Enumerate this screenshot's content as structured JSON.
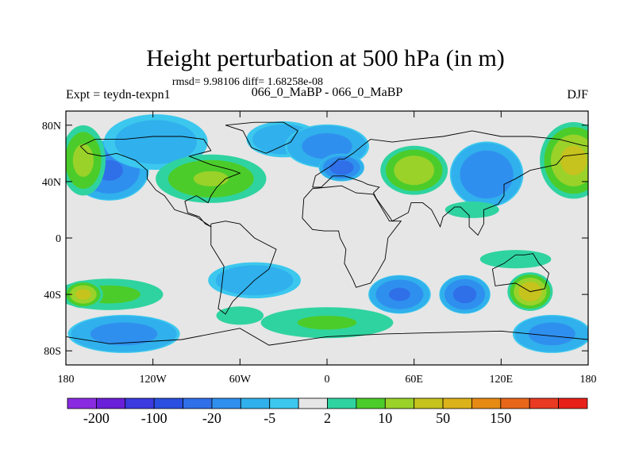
{
  "chart_data": {
    "type": "heatmap",
    "title": "Height perturbation at 500 hPa (in m)",
    "subtitle": "rmsd= 9.98106 diff= 1.68258e-08",
    "left_label": "Expt = teydn-texpn1",
    "center_label": "066_0_MaBP - 066_0_MaBP",
    "right_label": "DJF",
    "x_ticks": [
      {
        "value": -180,
        "label": "180"
      },
      {
        "value": -120,
        "label": "120W"
      },
      {
        "value": -60,
        "label": "60W"
      },
      {
        "value": 0,
        "label": "0"
      },
      {
        "value": 60,
        "label": "60E"
      },
      {
        "value": 120,
        "label": "120E"
      },
      {
        "value": 180,
        "label": "180"
      }
    ],
    "y_ticks": [
      {
        "value": 80,
        "label": "80N"
      },
      {
        "value": 40,
        "label": "40N"
      },
      {
        "value": 0,
        "label": "0"
      },
      {
        "value": -40,
        "label": "40S"
      },
      {
        "value": -80,
        "label": "80S"
      }
    ],
    "xlim": [
      -180,
      180
    ],
    "ylim": [
      -90,
      90
    ],
    "colorbar": {
      "colors": [
        "#8a2be2",
        "#6a1fd8",
        "#3b3be0",
        "#2a4fe0",
        "#2f6fe8",
        "#2f8fee",
        "#30b0ec",
        "#3cc8ee",
        "#e6e6e6",
        "#2fd3a0",
        "#4ccc2a",
        "#9ad22a",
        "#c6c21e",
        "#dcb21a",
        "#e68a14",
        "#e8661a",
        "#ea3a22",
        "#e8201a"
      ],
      "labels": [
        {
          "boundary": 1,
          "text": "-200"
        },
        {
          "boundary": 3,
          "text": "-100"
        },
        {
          "boundary": 5,
          "text": "-20"
        },
        {
          "boundary": 7,
          "text": "-5"
        },
        {
          "boundary": 9,
          "text": "2"
        },
        {
          "boundary": 11,
          "text": "10"
        },
        {
          "boundary": 13,
          "text": "50"
        },
        {
          "boundary": 15,
          "text": "150"
        }
      ]
    },
    "blobs": [
      {
        "lon": -150,
        "lat": 48,
        "rlon": 28,
        "rlat": 22,
        "value": -45
      },
      {
        "lon": -118,
        "lat": 68,
        "rlon": 40,
        "rlat": 22,
        "value": -10
      },
      {
        "lon": -168,
        "lat": 55,
        "rlon": 16,
        "rlat": 26,
        "value": 25
      },
      {
        "lon": -80,
        "lat": 42,
        "rlon": 40,
        "rlat": 18,
        "value": 22
      },
      {
        "lon": -30,
        "lat": 70,
        "rlon": 28,
        "rlat": 14,
        "value": -12
      },
      {
        "lon": 0,
        "lat": 65,
        "rlon": 30,
        "rlat": 16,
        "value": -30
      },
      {
        "lon": 10,
        "lat": 50,
        "rlon": 16,
        "rlat": 10,
        "value": -55
      },
      {
        "lon": 60,
        "lat": 48,
        "rlon": 24,
        "rlat": 18,
        "value": 30
      },
      {
        "lon": 110,
        "lat": 45,
        "rlon": 26,
        "rlat": 24,
        "value": -40
      },
      {
        "lon": 170,
        "lat": 55,
        "rlon": 24,
        "rlat": 28,
        "value": 35
      },
      {
        "lon": 100,
        "lat": 20,
        "rlon": 22,
        "rlat": 7,
        "value": 7
      },
      {
        "lon": -150,
        "lat": -40,
        "rlon": 40,
        "rlat": 12,
        "value": 14
      },
      {
        "lon": -168,
        "lat": -40,
        "rlon": 14,
        "rlat": 10,
        "value": 35
      },
      {
        "lon": -140,
        "lat": -68,
        "rlon": 40,
        "rlat": 14,
        "value": -30
      },
      {
        "lon": -50,
        "lat": -30,
        "rlon": 35,
        "rlat": 14,
        "value": -12
      },
      {
        "lon": 50,
        "lat": -40,
        "rlon": 22,
        "rlat": 14,
        "value": -45
      },
      {
        "lon": 0,
        "lat": -60,
        "rlon": 50,
        "rlat": 12,
        "value": 12
      },
      {
        "lon": -60,
        "lat": -55,
        "rlon": 20,
        "rlat": 8,
        "value": 6
      },
      {
        "lon": 95,
        "lat": -40,
        "rlon": 18,
        "rlat": 14,
        "value": -50
      },
      {
        "lon": 140,
        "lat": -38,
        "rlon": 16,
        "rlat": 14,
        "value": 40
      },
      {
        "lon": 155,
        "lat": -68,
        "rlon": 28,
        "rlat": 14,
        "value": -30
      },
      {
        "lon": 130,
        "lat": -15,
        "rlon": 30,
        "rlat": 8,
        "value": 6
      }
    ],
    "coastlines": [
      [
        [
          -170,
          65
        ],
        [
          -160,
          70
        ],
        [
          -140,
          70
        ],
        [
          -120,
          72
        ],
        [
          -100,
          72
        ],
        [
          -85,
          70
        ],
        [
          -80,
          62
        ],
        [
          -95,
          58
        ],
        [
          -80,
          52
        ],
        [
          -65,
          48
        ],
        [
          -60,
          46
        ],
        [
          -70,
          42
        ],
        [
          -76,
          36
        ],
        [
          -80,
          30
        ],
        [
          -82,
          25
        ],
        [
          -90,
          30
        ],
        [
          -98,
          26
        ],
        [
          -96,
          18
        ],
        [
          -88,
          15
        ],
        [
          -84,
          10
        ],
        [
          -80,
          8
        ],
        [
          -90,
          15
        ],
        [
          -105,
          20
        ],
        [
          -112,
          30
        ],
        [
          -118,
          34
        ],
        [
          -124,
          42
        ],
        [
          -124,
          48
        ],
        [
          -132,
          55
        ],
        [
          -145,
          60
        ],
        [
          -155,
          58
        ],
        [
          -165,
          60
        ],
        [
          -170,
          65
        ]
      ],
      [
        [
          -50,
          82
        ],
        [
          -30,
          82
        ],
        [
          -20,
          76
        ],
        [
          -25,
          68
        ],
        [
          -42,
          60
        ],
        [
          -52,
          64
        ],
        [
          -58,
          76
        ],
        [
          -70,
          80
        ],
        [
          -50,
          82
        ]
      ],
      [
        [
          -80,
          10
        ],
        [
          -70,
          12
        ],
        [
          -60,
          10
        ],
        [
          -50,
          0
        ],
        [
          -35,
          -8
        ],
        [
          -40,
          -22
        ],
        [
          -50,
          -30
        ],
        [
          -58,
          -38
        ],
        [
          -65,
          -45
        ],
        [
          -70,
          -54
        ],
        [
          -75,
          -50
        ],
        [
          -73,
          -38
        ],
        [
          -71,
          -20
        ],
        [
          -80,
          -5
        ],
        [
          -80,
          10
        ]
      ],
      [
        [
          -10,
          36
        ],
        [
          -8,
          44
        ],
        [
          -2,
          48
        ],
        [
          4,
          52
        ],
        [
          8,
          56
        ],
        [
          12,
          56
        ],
        [
          18,
          60
        ],
        [
          25,
          66
        ],
        [
          30,
          70
        ],
        [
          45,
          68
        ],
        [
          60,
          70
        ],
        [
          80,
          72
        ],
        [
          100,
          76
        ],
        [
          120,
          72
        ],
        [
          140,
          72
        ],
        [
          160,
          70
        ],
        [
          175,
          66
        ],
        [
          180,
          65
        ],
        [
          180,
          60
        ],
        [
          163,
          58
        ],
        [
          158,
          52
        ],
        [
          140,
          48
        ],
        [
          130,
          42
        ],
        [
          122,
          38
        ],
        [
          122,
          30
        ],
        [
          118,
          24
        ],
        [
          108,
          20
        ],
        [
          108,
          10
        ],
        [
          104,
          2
        ],
        [
          98,
          8
        ],
        [
          98,
          16
        ],
        [
          92,
          22
        ],
        [
          88,
          22
        ],
        [
          80,
          15
        ],
        [
          78,
          8
        ],
        [
          72,
          20
        ],
        [
          66,
          25
        ],
        [
          58,
          25
        ],
        [
          56,
          18
        ],
        [
          45,
          12
        ],
        [
          43,
          15
        ],
        [
          34,
          28
        ],
        [
          32,
          32
        ],
        [
          36,
          36
        ],
        [
          28,
          38
        ],
        [
          24,
          40
        ],
        [
          18,
          42
        ],
        [
          12,
          44
        ],
        [
          4,
          44
        ],
        [
          -4,
          36
        ],
        [
          -10,
          36
        ]
      ],
      [
        [
          -16,
          28
        ],
        [
          -10,
          35
        ],
        [
          0,
          36
        ],
        [
          10,
          37
        ],
        [
          20,
          32
        ],
        [
          32,
          31
        ],
        [
          43,
          12
        ],
        [
          51,
          12
        ],
        [
          42,
          0
        ],
        [
          40,
          -15
        ],
        [
          35,
          -24
        ],
        [
          30,
          -32
        ],
        [
          20,
          -35
        ],
        [
          18,
          -30
        ],
        [
          12,
          -18
        ],
        [
          13,
          -8
        ],
        [
          9,
          0
        ],
        [
          8,
          5
        ],
        [
          -2,
          5
        ],
        [
          -10,
          6
        ],
        [
          -17,
          14
        ],
        [
          -16,
          28
        ]
      ],
      [
        [
          114,
          -22
        ],
        [
          122,
          -18
        ],
        [
          130,
          -12
        ],
        [
          136,
          -12
        ],
        [
          142,
          -11
        ],
        [
          146,
          -18
        ],
        [
          153,
          -25
        ],
        [
          150,
          -36
        ],
        [
          140,
          -38
        ],
        [
          130,
          -32
        ],
        [
          116,
          -34
        ],
        [
          114,
          -22
        ]
      ],
      [
        [
          -180,
          -70
        ],
        [
          -150,
          -75
        ],
        [
          -100,
          -72
        ],
        [
          -60,
          -64
        ],
        [
          -40,
          -76
        ],
        [
          0,
          -70
        ],
        [
          40,
          -68
        ],
        [
          80,
          -67
        ],
        [
          120,
          -66
        ],
        [
          160,
          -70
        ],
        [
          180,
          -72
        ],
        [
          180,
          -90
        ],
        [
          -180,
          -90
        ],
        [
          -180,
          -70
        ]
      ]
    ]
  }
}
